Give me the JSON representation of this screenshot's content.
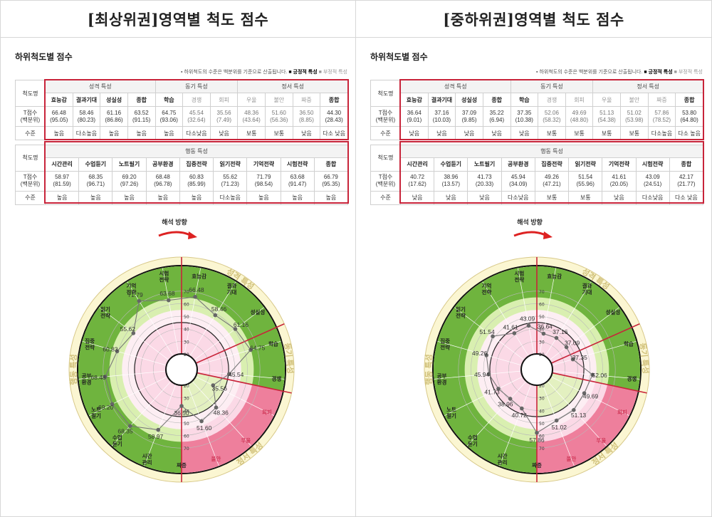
{
  "left": {
    "title": "[최상위권]영역별 척도 점수",
    "subtitle": "하위척도별 점수",
    "note": {
      "text": "하위척도의 수준은 백분위를 기준으로 산출됩니다.",
      "positive": "긍정적 특성",
      "negative": "부정적 특성"
    },
    "table": {
      "row_labels": {
        "name": "척도명",
        "score": "T점수\n(백분위)",
        "level": "수준"
      },
      "groups1": [
        "성격 특성",
        "동기 특성",
        "정서 특성"
      ],
      "scales1": [
        "효능감",
        "결과기대",
        "성실성",
        "종합",
        "학습",
        "경쟁",
        "회피",
        "우울",
        "불안",
        "짜증",
        "종합"
      ],
      "scores1": [
        "66.48",
        "58.46",
        "61.16",
        "63.52",
        "64.75",
        "45.54",
        "35.56",
        "48.36",
        "51.60",
        "36.50",
        "44.30"
      ],
      "pcts1": [
        "(95.05)",
        "(80.23)",
        "(86.86)",
        "(91.15)",
        "(93.06)",
        "(32.64)",
        "(7.49)",
        "(43.64)",
        "(56.36)",
        "(8.85)",
        "(28.43)"
      ],
      "levels1": [
        "높음",
        "다소높음",
        "높음",
        "높음",
        "높음",
        "다소낮음",
        "낮음",
        "보통",
        "보통",
        "낮음",
        "다소 낮음"
      ],
      "group2": "행동 특성",
      "scales2": [
        "시간관리",
        "수업듣기",
        "노트필기",
        "공부환경",
        "집중전략",
        "읽기전략",
        "기억전략",
        "시험전략",
        "종합"
      ],
      "scores2": [
        "58.97",
        "68.35",
        "69.20",
        "68.48",
        "60.83",
        "55.62",
        "71.79",
        "63.68",
        "66.79"
      ],
      "pcts2": [
        "(81.59)",
        "(96.71)",
        "(97.26)",
        "(96.78)",
        "(85.99)",
        "(71.23)",
        "(98.54)",
        "(91.47)",
        "(95.35)"
      ],
      "levels2": [
        "높음",
        "높음",
        "높음",
        "높음",
        "높음",
        "다소높음",
        "높음",
        "높음",
        "높음"
      ]
    },
    "chart_data": {
      "type": "radar",
      "direction_label": "해석 방향",
      "ring_ticks": [
        "20",
        "30",
        "40",
        "50",
        "60",
        "70"
      ],
      "ring_ticks_lower": [
        "20",
        "30",
        "40",
        "50",
        "60",
        "70"
      ],
      "sections": [
        "성격 특성",
        "동기 특성",
        "정서 특성",
        "행동 특성"
      ],
      "axes": [
        {
          "label": "효능감",
          "value": 66.48,
          "display": "66.48"
        },
        {
          "label": "결과\n기대",
          "value": 58.46,
          "display": "58.46"
        },
        {
          "label": "성실성",
          "value": 61.16,
          "display": "61.16"
        },
        {
          "label": "학습",
          "value": 64.75,
          "display": "64.75"
        },
        {
          "label": "경쟁",
          "value": 45.54,
          "display": "45.54"
        },
        {
          "label": "회피",
          "value": 35.56,
          "display": "35.56"
        },
        {
          "label": "우울",
          "value": 48.36,
          "display": "48.36"
        },
        {
          "label": "불안",
          "value": 51.6,
          "display": "51.60"
        },
        {
          "label": "짜증",
          "value": 36.5,
          "display": "36.50"
        },
        {
          "label": "시간\n관리",
          "value": 58.97,
          "display": "58.97"
        },
        {
          "label": "수업\n듣기",
          "value": 68.35,
          "display": "68.35"
        },
        {
          "label": "노트\n필기",
          "value": 69.2,
          "display": "69.20"
        },
        {
          "label": "공부\n환경",
          "value": 68.48,
          "display": "68.48"
        },
        {
          "label": "집중\n전략",
          "value": 60.83,
          "display": "60.83"
        },
        {
          "label": "읽기\n전략",
          "value": 55.62,
          "display": "55.62"
        },
        {
          "label": "기억\n전략",
          "value": 71.79,
          "display": "71.79"
        },
        {
          "label": "시험\n전략",
          "value": 63.68,
          "display": "63.68"
        }
      ]
    }
  },
  "right": {
    "title": "[중하위권]영역별 척도 점수",
    "subtitle": "하위척도별 점수",
    "note": {
      "text": "하위척도의 수준은 백분위를 기준으로 산출됩니다.",
      "positive": "긍정적 특성",
      "negative": "부정적 특성"
    },
    "table": {
      "row_labels": {
        "name": "척도명",
        "score": "T점수\n(백분위)",
        "level": "수준"
      },
      "groups1": [
        "성격 특성",
        "동기 특성",
        "정서 특성"
      ],
      "scales1": [
        "효능감",
        "결과기대",
        "성실성",
        "종합",
        "학습",
        "경쟁",
        "회피",
        "우울",
        "불안",
        "짜증",
        "종합"
      ],
      "scores1": [
        "36.64",
        "37.16",
        "37.09",
        "35.22",
        "37.35",
        "52.06",
        "49.69",
        "51.13",
        "51.02",
        "57.86",
        "53.80"
      ],
      "pcts1": [
        "(9.01)",
        "(10.03)",
        "(9.85)",
        "(6.94)",
        "(10.38)",
        "(58.32)",
        "(48.80)",
        "(54.38)",
        "(53.98)",
        "(78.52)",
        "(64.80)"
      ],
      "levels1": [
        "낮음",
        "낮음",
        "낮음",
        "낮음",
        "낮음",
        "보통",
        "보통",
        "보통",
        "보통",
        "다소높음",
        "다소 높음"
      ],
      "group2": "행동 특성",
      "scales2": [
        "시간관리",
        "수업듣기",
        "노트필기",
        "공부환경",
        "집중전략",
        "읽기전략",
        "기억전략",
        "시험전략",
        "종합"
      ],
      "scores2": [
        "40.72",
        "38.96",
        "41.73",
        "45.94",
        "49.26",
        "51.54",
        "41.61",
        "43.09",
        "42.17"
      ],
      "pcts2": [
        "(17.62)",
        "(13.57)",
        "(20.33)",
        "(34.09)",
        "(47.21)",
        "(55.96)",
        "(20.05)",
        "(24.51)",
        "(21.77)"
      ],
      "levels2": [
        "낮음",
        "낮음",
        "낮음",
        "다소낮음",
        "보통",
        "보통",
        "낮음",
        "다소낮음",
        "다소 낮음"
      ]
    },
    "chart_data": {
      "type": "radar",
      "direction_label": "해석 방향",
      "ring_ticks": [
        "20",
        "30",
        "40",
        "50",
        "60",
        "70"
      ],
      "ring_ticks_lower": [
        "20",
        "30",
        "40",
        "50",
        "60",
        "70"
      ],
      "sections": [
        "성격 특성",
        "동기 특성",
        "정서 특성",
        "행동 특성"
      ],
      "axes": [
        {
          "label": "효능감",
          "value": 36.64,
          "display": "36.64"
        },
        {
          "label": "결과\n기대",
          "value": 37.16,
          "display": "37.16"
        },
        {
          "label": "성실성",
          "value": 37.09,
          "display": "37.09"
        },
        {
          "label": "학습",
          "value": 37.35,
          "display": "37.35"
        },
        {
          "label": "경쟁",
          "value": 52.06,
          "display": "52.06"
        },
        {
          "label": "회피",
          "value": 49.69,
          "display": "49.69"
        },
        {
          "label": "우울",
          "value": 51.13,
          "display": "51.13"
        },
        {
          "label": "불안",
          "value": 51.02,
          "display": "51.02"
        },
        {
          "label": "짜증",
          "value": 57.86,
          "display": "57.86"
        },
        {
          "label": "시간\n관리",
          "value": 40.72,
          "display": "40.72"
        },
        {
          "label": "수업\n듣기",
          "value": 38.96,
          "display": "38.96"
        },
        {
          "label": "노트\n필기",
          "value": 41.73,
          "display": "41.73"
        },
        {
          "label": "공부\n환경",
          "value": 45.94,
          "display": "45.94"
        },
        {
          "label": "집중\n전략",
          "value": 49.26,
          "display": "49.26"
        },
        {
          "label": "읽기\n전략",
          "value": 51.54,
          "display": "51.54"
        },
        {
          "label": "기억\n전략",
          "value": 41.61,
          "display": "41.61"
        },
        {
          "label": "시험\n전략",
          "value": 43.09,
          "display": "43.09"
        }
      ]
    }
  },
  "colors": {
    "frame_red": "#c8243a",
    "green_dark": "#6fb43e",
    "green_light": "#d9efb0",
    "pink_light": "#fbd9e6",
    "pink_dark": "#ee7f9c",
    "cream": "#fbf6d2",
    "point": "#666666"
  }
}
